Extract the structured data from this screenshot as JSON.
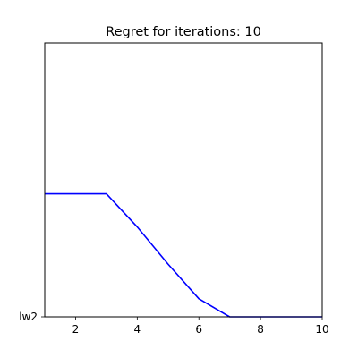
{
  "chart_data": {
    "type": "line",
    "title": "Regret for iterations: 10",
    "xlabel": "",
    "ylabel": "",
    "xlim": [
      1,
      10
    ],
    "ylim": [
      0,
      5.3
    ],
    "x_ticks": [
      2,
      4,
      6,
      8,
      10
    ],
    "y_ticks": [
      {
        "value": 0,
        "label": "lw2"
      }
    ],
    "grid": false,
    "series": [
      {
        "color": "#0000ff",
        "x": [
          1,
          2,
          3,
          4,
          5,
          6,
          7,
          8,
          9,
          10
        ],
        "y": [
          2.38,
          2.38,
          2.38,
          1.74,
          1.02,
          0.35,
          0.0,
          0.0,
          0.0,
          0.0
        ]
      }
    ]
  }
}
